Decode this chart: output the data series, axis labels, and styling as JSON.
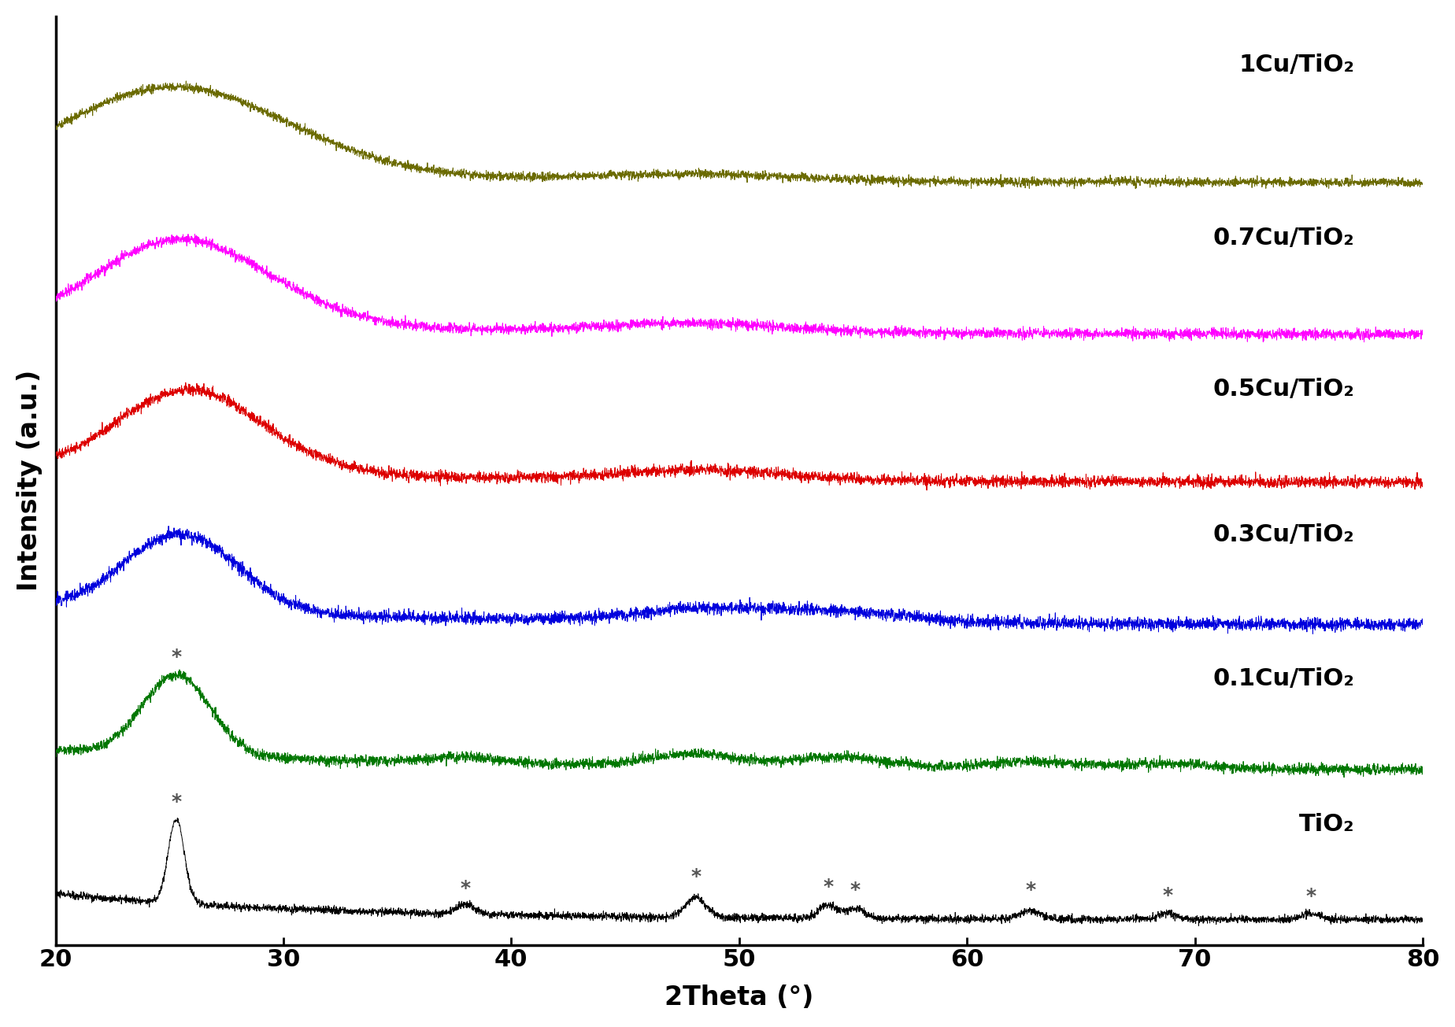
{
  "xlabel": "2Theta (°)",
  "ylabel": "Intensity (a.u.)",
  "xlim": [
    20,
    80
  ],
  "x_ticks": [
    20,
    30,
    40,
    50,
    60,
    70,
    80
  ],
  "series": [
    {
      "label": "TiO₂",
      "color": "#000000"
    },
    {
      "label": "0.1Cu/TiO₂",
      "color": "#007700"
    },
    {
      "label": "0.3Cu/TiO₂",
      "color": "#0000DD"
    },
    {
      "label": "0.5Cu/TiO₂",
      "color": "#DD0000"
    },
    {
      "label": "0.7Cu/TiO₂",
      "color": "#FF00FF"
    },
    {
      "label": "1Cu/TiO₂",
      "color": "#6B6B00"
    }
  ],
  "background_color": "#ffffff",
  "linewidth": 0.7,
  "label_fontsize": 24,
  "tick_fontsize": 22,
  "curve_label_fontsize": 22
}
